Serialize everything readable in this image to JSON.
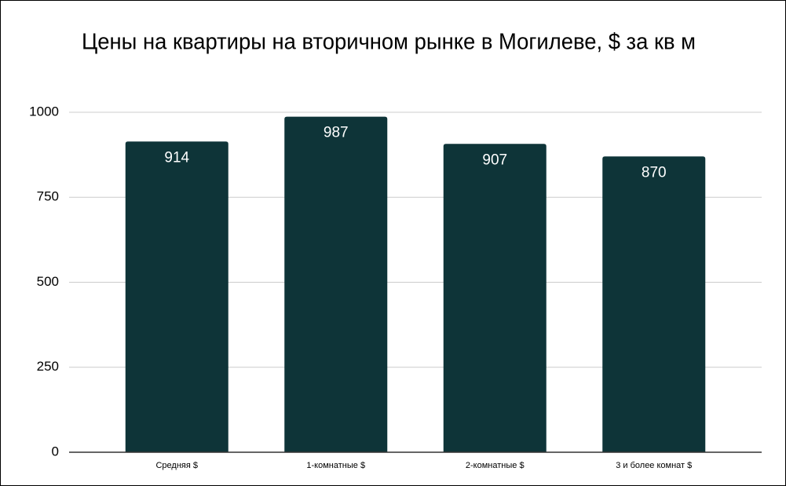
{
  "chart_data": {
    "type": "bar",
    "title": "Цены на квартиры на вторичном рынке в Могилеве, $ за кв м",
    "categories": [
      "Средняя $",
      "1-комнатные $",
      "2-комнатные $",
      "3 и более комнат $"
    ],
    "values": [
      914,
      987,
      907,
      870
    ],
    "color": "#0e3438",
    "ylim": [
      0,
      1000
    ],
    "yticks": [
      0,
      250,
      500,
      750,
      1000
    ],
    "grid": true
  }
}
